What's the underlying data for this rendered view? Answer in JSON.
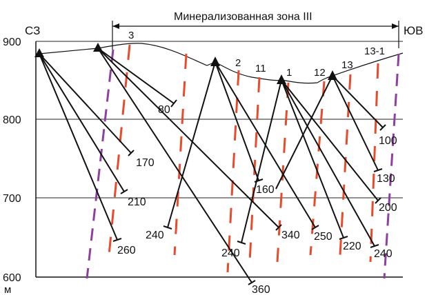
{
  "colors": {
    "line": "#111111",
    "gridline": "#222222",
    "ore_body": "#e84a2a",
    "fault": "#8e3fa0",
    "background": "#ffffff"
  },
  "zone_label": "Минерализованная зона III",
  "direction_left": "СЗ",
  "direction_right": "ЮВ",
  "unit": "м",
  "elevation_ticks": [
    {
      "value": 900,
      "label": "900"
    },
    {
      "value": 800,
      "label": "800"
    },
    {
      "value": 700,
      "label": "700"
    },
    {
      "value": 600,
      "label": "600"
    }
  ],
  "ore_body_labels": [
    "3",
    "2",
    "11",
    "1",
    "12",
    "13",
    "13-1"
  ],
  "drillholes": [
    {
      "site": "A",
      "depth_label": "170"
    },
    {
      "site": "A",
      "depth_label": "210"
    },
    {
      "site": "A",
      "depth_label": "260"
    },
    {
      "site": "B",
      "depth_label": "80"
    },
    {
      "site": "B",
      "depth_label": "340"
    },
    {
      "site": "B",
      "depth_label": "360"
    },
    {
      "site": "C",
      "depth_label": "240"
    },
    {
      "site": "C",
      "depth_label": "160"
    },
    {
      "site": "C",
      "depth_label": "250"
    },
    {
      "site": "D",
      "depth_label": "240"
    },
    {
      "site": "D",
      "depth_label": "220"
    },
    {
      "site": "D",
      "depth_label": "200"
    },
    {
      "site": "D",
      "depth_label": "240"
    },
    {
      "site": "E",
      "depth_label": "100"
    },
    {
      "site": "E",
      "depth_label": "130"
    }
  ]
}
